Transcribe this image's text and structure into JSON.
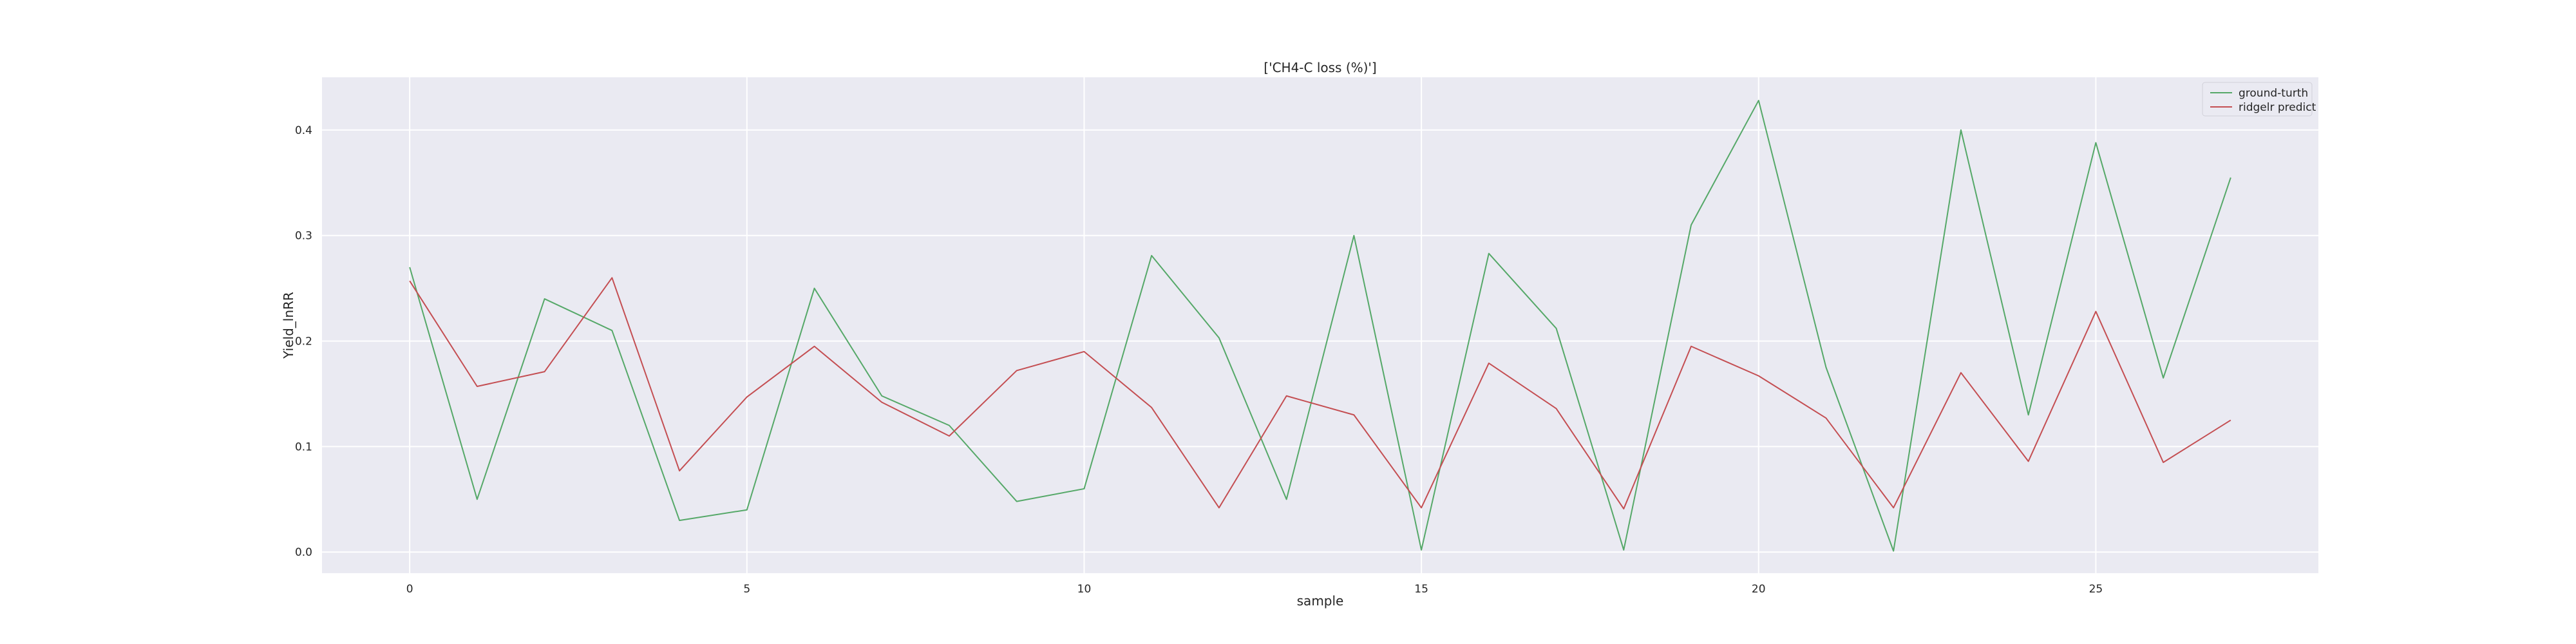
{
  "chart_data": {
    "type": "line",
    "title": "['CH4-C loss (%)']",
    "xlabel": "sample",
    "ylabel": "Yield_lnRR",
    "xlim": [
      -1.3,
      28.3
    ],
    "ylim": [
      -0.02,
      0.45
    ],
    "x_ticks": [
      0,
      5,
      10,
      15,
      20,
      25
    ],
    "y_ticks": [
      0.0,
      0.1,
      0.2,
      0.3,
      0.4
    ],
    "grid": true,
    "legend_position": "top-right",
    "x": [
      0,
      1,
      2,
      3,
      4,
      5,
      6,
      7,
      8,
      9,
      10,
      11,
      12,
      13,
      14,
      15,
      16,
      17,
      18,
      19,
      20,
      21,
      22,
      23,
      24,
      25,
      26,
      27
    ],
    "series": [
      {
        "name": "ground-turth",
        "color": "#55a868",
        "values": [
          0.27,
          0.05,
          0.24,
          0.21,
          0.03,
          0.04,
          0.25,
          0.148,
          0.12,
          0.048,
          0.06,
          0.281,
          0.203,
          0.05,
          0.3,
          0.002,
          0.283,
          0.212,
          0.002,
          0.31,
          0.428,
          0.175,
          0.001,
          0.4,
          0.13,
          0.388,
          0.165,
          0.355
        ]
      },
      {
        "name": "ridgelr predict",
        "color": "#c44e52",
        "values": [
          0.257,
          0.157,
          0.171,
          0.26,
          0.077,
          0.147,
          0.195,
          0.142,
          0.11,
          0.172,
          0.19,
          0.137,
          0.042,
          0.148,
          0.13,
          0.042,
          0.179,
          0.136,
          0.041,
          0.195,
          0.167,
          0.127,
          0.042,
          0.17,
          0.086,
          0.228,
          0.085,
          0.125
        ]
      }
    ]
  }
}
